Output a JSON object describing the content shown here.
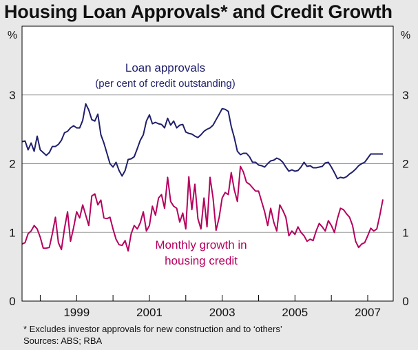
{
  "title": "Housing Loan Approvals* and Credit Growth",
  "footnote": "*   Excludes investor approvals for new construction and to ‘others’",
  "sources": "Sources: ABS; RBA",
  "colors": {
    "background": "#e8e8e8",
    "plot_background": "#ffffff",
    "loan_approvals": "#1f1f6b",
    "credit_growth": "#b5005e",
    "grid": "#9a9a9a",
    "axis": "#000000"
  },
  "chart_data": {
    "type": "line",
    "title": "Housing Loan Approvals* and Credit Growth",
    "y_unit_label_left": "%",
    "y_unit_label_right": "%",
    "ylim": [
      0,
      4
    ],
    "yticks": [
      0,
      1,
      2,
      3
    ],
    "xlim": [
      1997.5,
      2007.7
    ],
    "xticks": [
      1999,
      2001,
      2003,
      2005,
      2007
    ],
    "xtick_labels": [
      "1999",
      "2001",
      "2003",
      "2005",
      "2007"
    ],
    "year_separators": [
      1998,
      1999,
      2000,
      2001,
      2002,
      2003,
      2004,
      2005,
      2006,
      2007
    ],
    "grid_lines": [
      1,
      2,
      3
    ],
    "series": [
      {
        "name": "Loan approvals",
        "annotation": [
          "Loan approvals",
          "(per cent of credit outstanding)"
        ],
        "x": [
          1997.5,
          1997.583,
          1997.667,
          1997.75,
          1997.833,
          1997.917,
          1998.0,
          1998.083,
          1998.167,
          1998.25,
          1998.333,
          1998.417,
          1998.5,
          1998.583,
          1998.667,
          1998.75,
          1998.833,
          1998.917,
          1999.0,
          1999.083,
          1999.167,
          1999.25,
          1999.333,
          1999.417,
          1999.5,
          1999.583,
          1999.667,
          1999.75,
          1999.833,
          1999.917,
          2000.0,
          2000.083,
          2000.167,
          2000.25,
          2000.333,
          2000.417,
          2000.5,
          2000.583,
          2000.667,
          2000.75,
          2000.833,
          2000.917,
          2001.0,
          2001.083,
          2001.167,
          2001.25,
          2001.333,
          2001.417,
          2001.5,
          2001.583,
          2001.667,
          2001.75,
          2001.833,
          2001.917,
          2002.0,
          2002.083,
          2002.167,
          2002.25,
          2002.333,
          2002.417,
          2002.5,
          2002.583,
          2002.667,
          2002.75,
          2002.833,
          2002.917,
          2003.0,
          2003.083,
          2003.167,
          2003.25,
          2003.333,
          2003.417,
          2003.5,
          2003.583,
          2003.667,
          2003.75,
          2003.833,
          2003.917,
          2004.0,
          2004.083,
          2004.167,
          2004.25,
          2004.333,
          2004.417,
          2004.5,
          2004.583,
          2004.667,
          2004.75,
          2004.833,
          2004.917,
          2005.0,
          2005.083,
          2005.167,
          2005.25,
          2005.333,
          2005.417,
          2005.5,
          2005.583,
          2005.667,
          2005.75,
          2005.833,
          2005.917,
          2006.0,
          2006.083,
          2006.167,
          2006.25,
          2006.333,
          2006.417,
          2006.5,
          2006.583,
          2006.667,
          2006.75,
          2006.833,
          2006.917,
          2007.0,
          2007.083,
          2007.167,
          2007.25,
          2007.333,
          2007.417
        ],
        "values": [
          2.32,
          2.33,
          2.2,
          2.3,
          2.18,
          2.4,
          2.2,
          2.16,
          2.12,
          2.16,
          2.25,
          2.25,
          2.28,
          2.34,
          2.45,
          2.47,
          2.52,
          2.55,
          2.52,
          2.52,
          2.63,
          2.87,
          2.78,
          2.64,
          2.62,
          2.72,
          2.42,
          2.3,
          2.15,
          2.0,
          1.95,
          2.02,
          1.9,
          1.82,
          1.9,
          2.06,
          2.07,
          2.1,
          2.22,
          2.34,
          2.42,
          2.62,
          2.71,
          2.58,
          2.6,
          2.58,
          2.57,
          2.52,
          2.66,
          2.56,
          2.62,
          2.52,
          2.56,
          2.57,
          2.46,
          2.44,
          2.43,
          2.4,
          2.38,
          2.42,
          2.47,
          2.5,
          2.52,
          2.56,
          2.64,
          2.72,
          2.8,
          2.79,
          2.76,
          2.54,
          2.38,
          2.18,
          2.13,
          2.15,
          2.15,
          2.1,
          2.02,
          2.02,
          1.98,
          1.97,
          1.95,
          2.0,
          2.04,
          2.05,
          2.08,
          2.06,
          2.02,
          1.95,
          1.89,
          1.91,
          1.89,
          1.9,
          1.95,
          2.02,
          1.96,
          1.97,
          1.94,
          1.94,
          1.95,
          1.96,
          2.01,
          2.02,
          1.95,
          1.87,
          1.78,
          1.8,
          1.79,
          1.81,
          1.85,
          1.88,
          1.92,
          1.97,
          2.0,
          2.02,
          2.08,
          2.14,
          2.14,
          2.14,
          2.14,
          2.14
        ]
      },
      {
        "name": "Monthly growth in housing credit",
        "annotation": [
          "Monthly growth in",
          "housing credit"
        ],
        "x": [
          1997.5,
          1997.583,
          1997.667,
          1997.75,
          1997.833,
          1997.917,
          1998.0,
          1998.083,
          1998.167,
          1998.25,
          1998.333,
          1998.417,
          1998.5,
          1998.583,
          1998.667,
          1998.75,
          1998.833,
          1998.917,
          1999.0,
          1999.083,
          1999.167,
          1999.25,
          1999.333,
          1999.417,
          1999.5,
          1999.583,
          1999.667,
          1999.75,
          1999.833,
          1999.917,
          2000.0,
          2000.083,
          2000.167,
          2000.25,
          2000.333,
          2000.417,
          2000.5,
          2000.583,
          2000.667,
          2000.75,
          2000.833,
          2000.917,
          2001.0,
          2001.083,
          2001.167,
          2001.25,
          2001.333,
          2001.417,
          2001.5,
          2001.583,
          2001.667,
          2001.75,
          2001.833,
          2001.917,
          2002.0,
          2002.083,
          2002.167,
          2002.25,
          2002.333,
          2002.417,
          2002.5,
          2002.583,
          2002.667,
          2002.75,
          2002.833,
          2002.917,
          2003.0,
          2003.083,
          2003.167,
          2003.25,
          2003.333,
          2003.417,
          2003.5,
          2003.583,
          2003.667,
          2003.75,
          2003.833,
          2003.917,
          2004.0,
          2004.083,
          2004.167,
          2004.25,
          2004.333,
          2004.417,
          2004.5,
          2004.583,
          2004.667,
          2004.75,
          2004.833,
          2004.917,
          2005.0,
          2005.083,
          2005.167,
          2005.25,
          2005.333,
          2005.417,
          2005.5,
          2005.583,
          2005.667,
          2005.75,
          2005.833,
          2005.917,
          2006.0,
          2006.083,
          2006.167,
          2006.25,
          2006.333,
          2006.417,
          2006.5,
          2006.583,
          2006.667,
          2006.75,
          2006.833,
          2006.917,
          2007.0,
          2007.083,
          2007.167,
          2007.25,
          2007.333,
          2007.417
        ],
        "values": [
          0.83,
          0.85,
          0.98,
          1.02,
          1.1,
          1.05,
          0.93,
          0.77,
          0.77,
          0.78,
          0.98,
          1.22,
          0.85,
          0.75,
          1.06,
          1.3,
          0.87,
          1.07,
          1.3,
          1.21,
          1.4,
          1.25,
          1.1,
          1.53,
          1.56,
          1.4,
          1.47,
          1.21,
          1.2,
          1.22,
          1.05,
          0.9,
          0.82,
          0.81,
          0.88,
          0.73,
          0.98,
          1.1,
          1.05,
          1.14,
          1.3,
          1.02,
          1.1,
          1.38,
          1.25,
          1.5,
          1.55,
          1.35,
          1.8,
          1.45,
          1.38,
          1.35,
          1.15,
          1.28,
          1.05,
          1.81,
          1.33,
          1.7,
          1.2,
          1.05,
          1.5,
          1.08,
          1.8,
          1.5,
          1.03,
          1.22,
          1.5,
          1.58,
          1.55,
          1.87,
          1.62,
          1.45,
          1.96,
          1.88,
          1.73,
          1.7,
          1.65,
          1.6,
          1.6,
          1.45,
          1.3,
          1.1,
          1.35,
          1.15,
          1.02,
          1.4,
          1.32,
          1.22,
          0.95,
          1.02,
          0.97,
          1.08,
          1.0,
          0.95,
          0.87,
          0.9,
          0.88,
          1.02,
          1.13,
          1.08,
          1.02,
          1.17,
          1.1,
          1.0,
          1.2,
          1.35,
          1.33,
          1.27,
          1.22,
          1.1,
          0.87,
          0.78,
          0.83,
          0.85,
          0.95,
          1.06,
          1.02,
          1.05,
          1.25,
          1.48
        ]
      }
    ]
  }
}
